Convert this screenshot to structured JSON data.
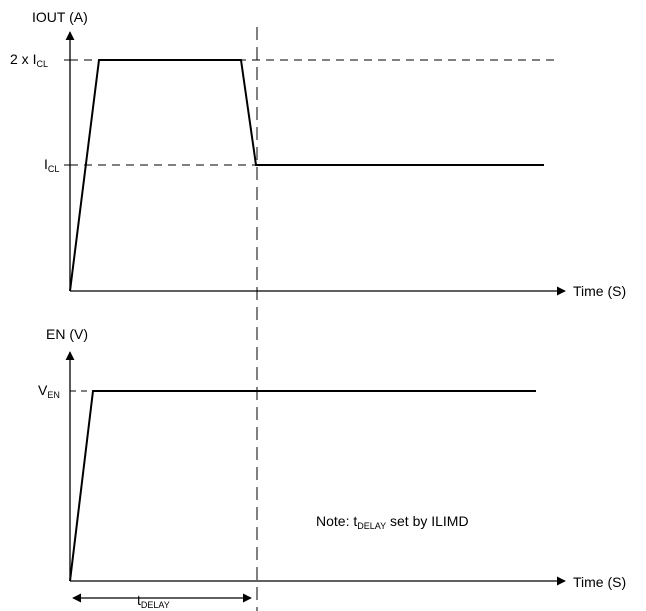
{
  "top_chart": {
    "y_axis_label": "IOUT (A)",
    "x_axis_label": "Time (S)",
    "level_high": {
      "prefix": "2 x I",
      "sub": "CL"
    },
    "level_low": {
      "prefix": "I",
      "sub": "CL"
    }
  },
  "bottom_chart": {
    "y_axis_label": "EN (V)",
    "x_axis_label": "Time (S)",
    "level": {
      "prefix": "V",
      "sub": "EN"
    }
  },
  "delay": {
    "prefix": "t",
    "sub": "DELAY"
  },
  "note": {
    "text_before": "Note: t",
    "sub": "DELAY",
    "text_after": " set by ILIMD"
  },
  "colors": {
    "line": "#000000",
    "background": "#ffffff"
  }
}
